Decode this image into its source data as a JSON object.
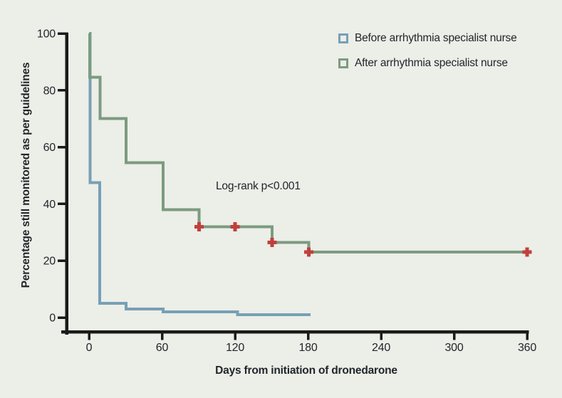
{
  "colors": {
    "background": "#ECEEE8",
    "axis": "#1A1A1A",
    "text": "#21262B",
    "censor_mark": "#C0403C"
  },
  "chart_data": {
    "type": "line",
    "variant": "kaplan-meier-step",
    "title": "",
    "xlabel": "Days from initiation of dronedarone",
    "ylabel": "Percentage still monitored as per guidelines",
    "xlim": [
      0,
      360
    ],
    "ylim": [
      0,
      100
    ],
    "xticks": [
      0,
      60,
      120,
      180,
      240,
      300,
      360
    ],
    "yticks": [
      0,
      20,
      40,
      60,
      80,
      100
    ],
    "grid": false,
    "legend_position": "top-right-inside",
    "annotation": "Log-rank p<0.001",
    "series": [
      {
        "name": "Before arrhythmia specialist nurse",
        "color": "#77A0B5",
        "steps": [
          [
            0,
            100
          ],
          [
            0.8,
            47.5
          ],
          [
            8.8,
            5
          ],
          [
            30.5,
            3
          ],
          [
            61,
            2
          ],
          [
            122,
            1
          ]
        ],
        "end_day": 182,
        "censors": []
      },
      {
        "name": "After arrhythmia specialist nurse",
        "color": "#7C9B80",
        "steps": [
          [
            0,
            100
          ],
          [
            0.7,
            84.6
          ],
          [
            9,
            70
          ],
          [
            30.5,
            54.5
          ],
          [
            61,
            38
          ],
          [
            90.5,
            32
          ],
          [
            150.5,
            26.5
          ],
          [
            180.5,
            23
          ]
        ],
        "end_day": 360,
        "censors": [
          [
            90.5,
            32
          ],
          [
            120,
            32
          ],
          [
            150.5,
            26.5
          ],
          [
            180.5,
            23
          ],
          [
            360,
            23
          ]
        ]
      }
    ]
  }
}
